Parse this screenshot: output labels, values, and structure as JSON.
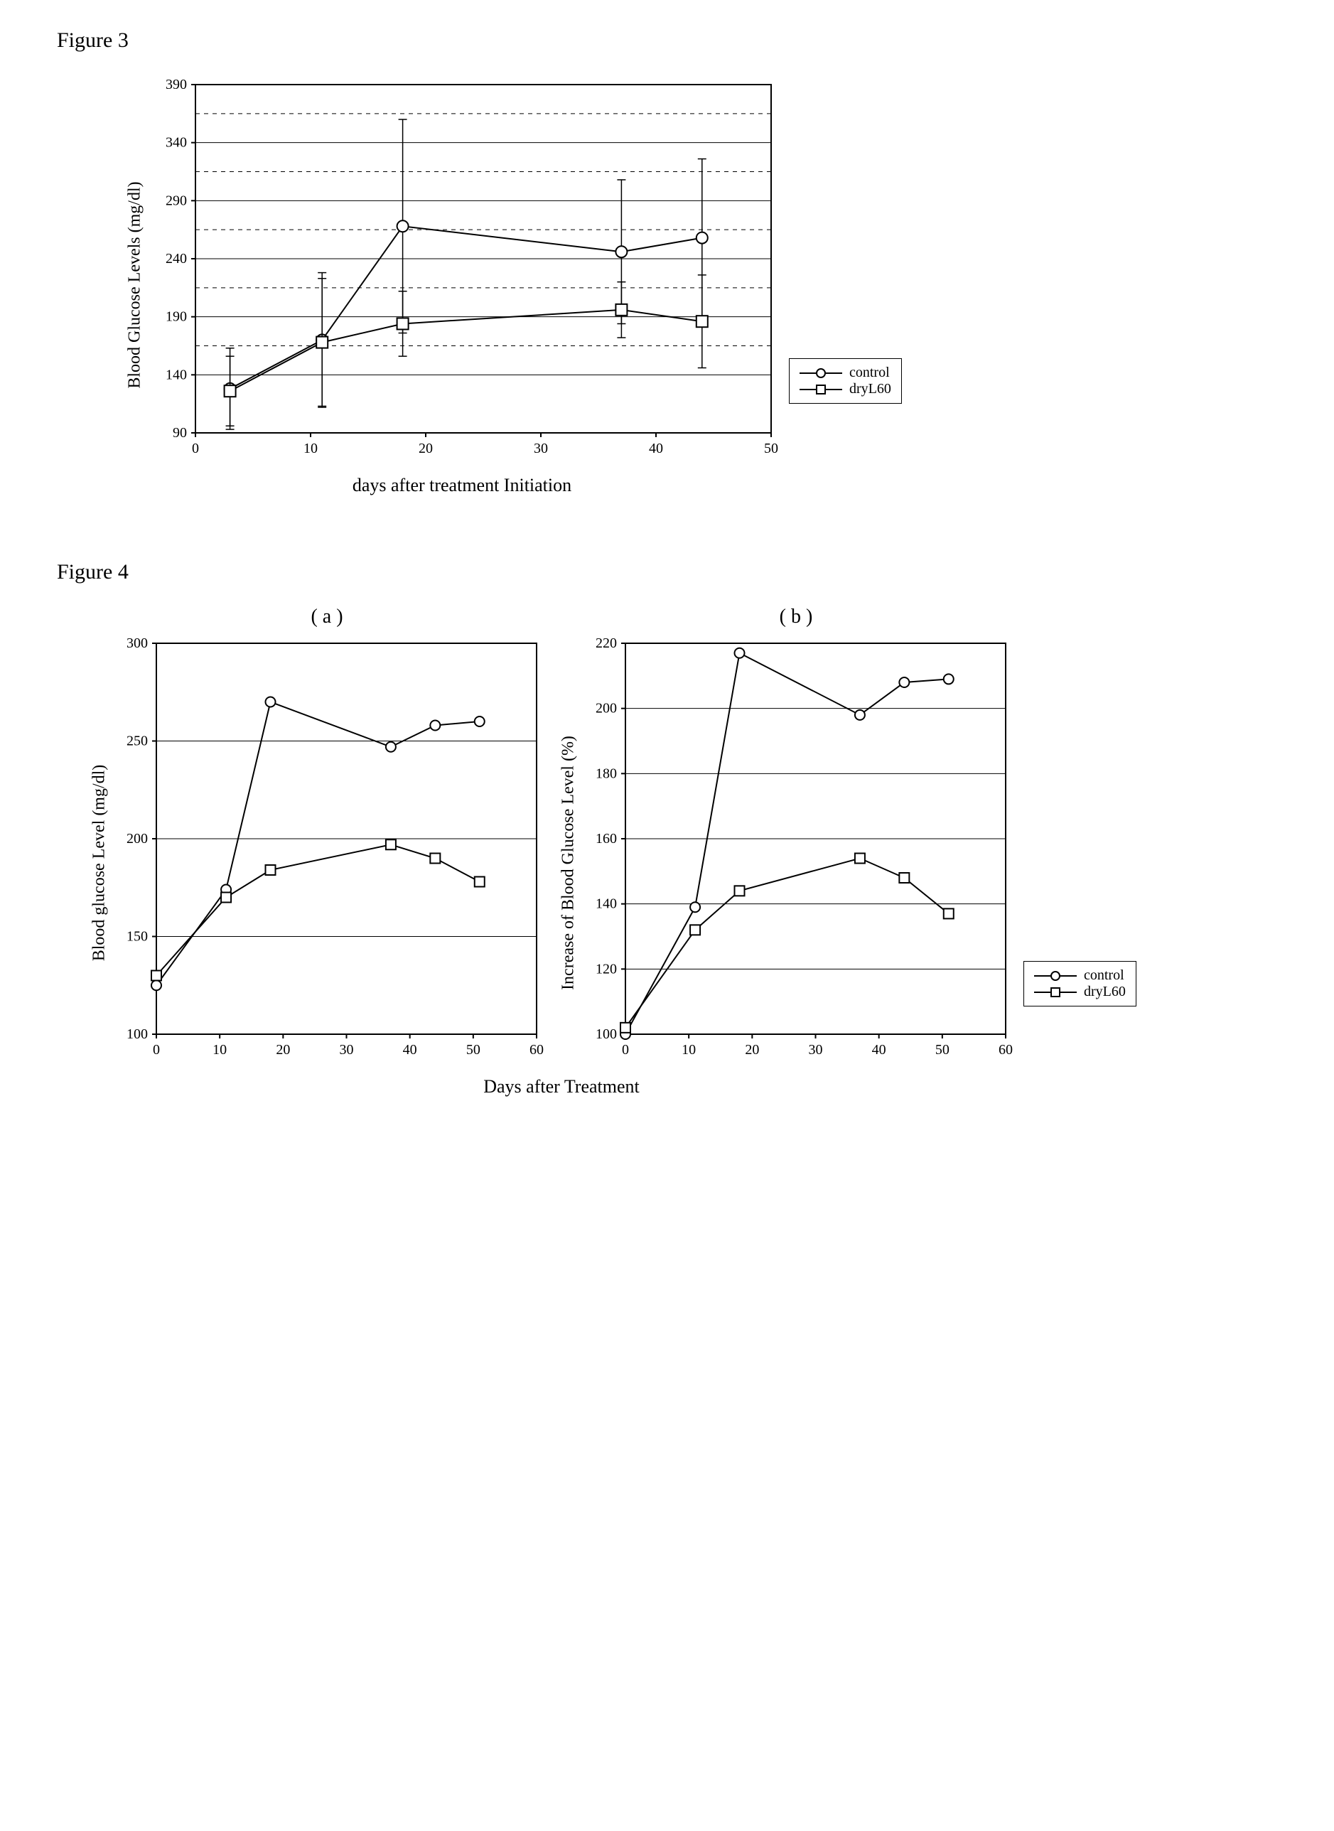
{
  "figure3": {
    "label": "Figure 3",
    "ylabel": "Blood Glucose  Levels (mg/dl)",
    "xlabel": "days after treatment Initiation",
    "xlim": [
      0,
      50
    ],
    "xtick_step": 10,
    "ylim": [
      90,
      390
    ],
    "ytick_step": 50,
    "extra_hgrid": true,
    "grid_color": "#000000",
    "background_color": "#ffffff",
    "marker_size": 8,
    "line_width": 2,
    "axis_fontsize": 24,
    "tick_fontsize": 20,
    "series": [
      {
        "name": "control",
        "marker": "circle",
        "points": [
          {
            "x": 3,
            "y": 128,
            "err": 35
          },
          {
            "x": 11,
            "y": 170,
            "err": 58
          },
          {
            "x": 18,
            "y": 268,
            "err": 92
          },
          {
            "x": 37,
            "y": 246,
            "err": 62
          },
          {
            "x": 44,
            "y": 258,
            "err": 68
          }
        ]
      },
      {
        "name": "dryL60",
        "marker": "square",
        "points": [
          {
            "x": 3,
            "y": 126,
            "err": 30
          },
          {
            "x": 11,
            "y": 168,
            "err": 55
          },
          {
            "x": 18,
            "y": 184,
            "err": 28
          },
          {
            "x": 37,
            "y": 196,
            "err": 24
          },
          {
            "x": 44,
            "y": 186,
            "err": 40
          }
        ]
      }
    ],
    "legend": {
      "items": [
        "control",
        "dryL60"
      ],
      "markers": [
        "circle",
        "square"
      ]
    }
  },
  "figure4": {
    "label": "Figure 4",
    "xlabel": "Days after Treatment",
    "axis_fontsize": 24,
    "tick_fontsize": 20,
    "marker_size": 7,
    "line_width": 2,
    "panels": {
      "a": {
        "sub_label": "( a )",
        "ylabel": "Blood glucose Level (mg/dl)",
        "xlim": [
          0,
          60
        ],
        "xtick_step": 10,
        "ylim": [
          100,
          300
        ],
        "ytick_step": 50,
        "series": [
          {
            "name": "control",
            "marker": "circle",
            "points": [
              {
                "x": 0,
                "y": 125
              },
              {
                "x": 11,
                "y": 174
              },
              {
                "x": 18,
                "y": 270
              },
              {
                "x": 37,
                "y": 247
              },
              {
                "x": 44,
                "y": 258
              },
              {
                "x": 51,
                "y": 260
              }
            ]
          },
          {
            "name": "dryL60",
            "marker": "square",
            "points": [
              {
                "x": 0,
                "y": 130
              },
              {
                "x": 11,
                "y": 170
              },
              {
                "x": 18,
                "y": 184
              },
              {
                "x": 37,
                "y": 197
              },
              {
                "x": 44,
                "y": 190
              },
              {
                "x": 51,
                "y": 178
              }
            ]
          }
        ]
      },
      "b": {
        "sub_label": "( b )",
        "ylabel": "Increase of Blood Glucose Level (%)",
        "xlim": [
          0,
          60
        ],
        "xtick_step": 10,
        "ylim": [
          100,
          220
        ],
        "ytick_step": 20,
        "series": [
          {
            "name": "control",
            "marker": "circle",
            "points": [
              {
                "x": 0,
                "y": 100
              },
              {
                "x": 11,
                "y": 139
              },
              {
                "x": 18,
                "y": 217
              },
              {
                "x": 37,
                "y": 198
              },
              {
                "x": 44,
                "y": 208
              },
              {
                "x": 51,
                "y": 209
              }
            ]
          },
          {
            "name": "dryL60",
            "marker": "square",
            "points": [
              {
                "x": 0,
                "y": 102
              },
              {
                "x": 11,
                "y": 132
              },
              {
                "x": 18,
                "y": 144
              },
              {
                "x": 37,
                "y": 154
              },
              {
                "x": 44,
                "y": 148
              },
              {
                "x": 51,
                "y": 137
              }
            ]
          }
        ]
      }
    },
    "legend": {
      "items": [
        "control",
        "dryL60"
      ],
      "markers": [
        "circle",
        "square"
      ]
    }
  }
}
